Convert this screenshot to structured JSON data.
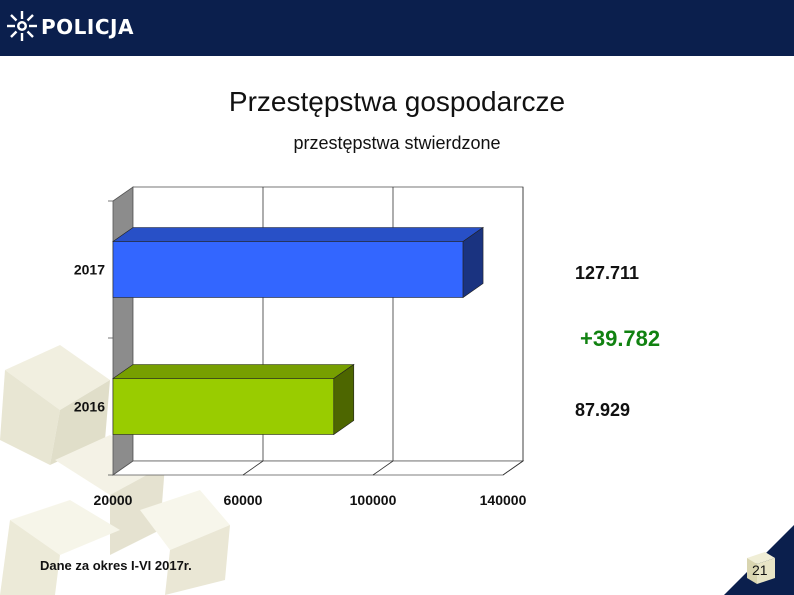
{
  "header": {
    "brand": "POLICJA"
  },
  "title": "Przestępstwa gospodarcze",
  "subtitle": "przestępstwa stwierdzone",
  "value_labels": {
    "v2017": "127.711",
    "v2016": "87.929"
  },
  "difference": "+39.782",
  "footnote": "Dane za okres I-VI 2017r.",
  "page_number": "21",
  "chart_data": {
    "type": "bar",
    "orientation": "horizontal",
    "categories": [
      "2017",
      "2016"
    ],
    "values": [
      127711,
      87929
    ],
    "colors": [
      "#3366ff",
      "#99cc00"
    ],
    "xlim": [
      20000,
      140000
    ],
    "xticks": [
      "20000",
      "60000",
      "100000",
      "140000"
    ],
    "xtick_values": [
      20000,
      60000,
      100000,
      140000
    ],
    "grid": true,
    "style": "3d"
  },
  "colors": {
    "header": "#0b1f4d",
    "difference": "#118211"
  }
}
